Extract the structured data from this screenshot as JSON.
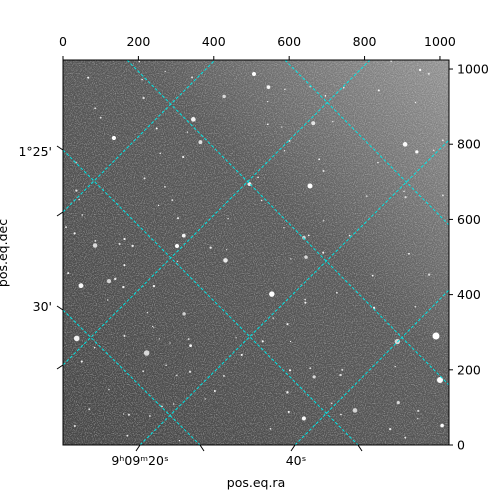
{
  "chart_data": {
    "type": "image",
    "xlabel": "pos.eq.ra",
    "ylabel": "pos.eq.dec",
    "xlim": [
      0,
      1024
    ],
    "ylim": [
      0,
      1024
    ],
    "xticks": [
      0,
      200,
      400,
      600,
      800,
      1000
    ],
    "yticks": [
      0,
      200,
      400,
      600,
      800,
      1000
    ],
    "ra_ticks": [
      "9ʰ09ᵐ20ˢ",
      "40ˢ"
    ],
    "dec_ticks": [
      "1°25'",
      "30'"
    ],
    "grid_color": "#00e5e5"
  }
}
